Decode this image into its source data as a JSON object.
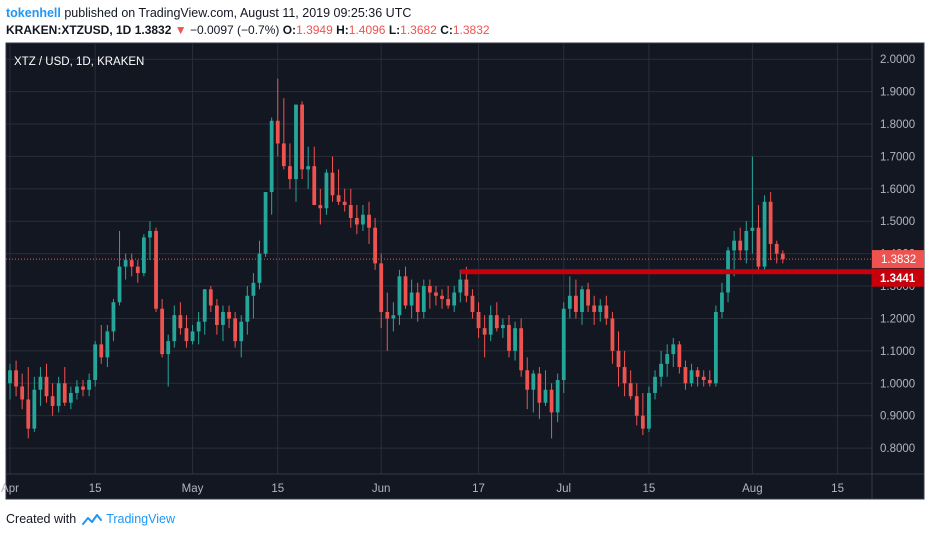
{
  "header": {
    "user": "tokenhell",
    "published_text": "published on TradingView.com, August 11, 2019 09:25:36 UTC",
    "symbol": "KRAKEN:XTZUSD, 1D",
    "last": "1.3832",
    "change_arrow": "▼",
    "change": "−0.0097 (−0.7%)",
    "o_label": "O:",
    "o_value": "1.3949",
    "h_label": "H:",
    "h_value": "1.4096",
    "l_label": "L:",
    "l_value": "1.3682",
    "c_label": "C:",
    "c_value": "1.3832"
  },
  "footer": {
    "created_with": "Created with",
    "brand": "TradingView",
    "logo_icon": "tradingview-cloud-icon"
  },
  "colors": {
    "background": "#131722",
    "grid": "#2a2e39",
    "up": "#26a69a",
    "down": "#ef5350",
    "support_line": "#c8000c",
    "text": "#ffffff"
  },
  "chart_data": {
    "type": "candlestick",
    "title": "XTZ / USD, 1D, KRAKEN",
    "ylim": [
      0.72,
      2.05
    ],
    "y_ticks": [
      "0.8000",
      "0.9000",
      "1.0000",
      "1.1000",
      "1.2000",
      "1.3000",
      "1.4000",
      "1.5000",
      "1.6000",
      "1.7000",
      "1.8000",
      "1.9000",
      "2.0000"
    ],
    "x_ticks": [
      {
        "label": "Apr",
        "day": 0
      },
      {
        "label": "15",
        "day": 14
      },
      {
        "label": "May",
        "day": 30
      },
      {
        "label": "15",
        "day": 44
      },
      {
        "label": "Jun",
        "day": 61
      },
      {
        "label": "17",
        "day": 77
      },
      {
        "label": "Jul",
        "day": 91
      },
      {
        "label": "15",
        "day": 105
      },
      {
        "label": "Aug",
        "day": 122
      },
      {
        "label": "15",
        "day": 136
      }
    ],
    "x_range": [
      0,
      141
    ],
    "last_price_label": "1.3832",
    "support_level_label": "1.3441",
    "support_level": 1.3441,
    "support_start_day": 74,
    "ohlc": [
      [
        1.0,
        1.06,
        0.95,
        1.04
      ],
      [
        1.04,
        1.07,
        0.96,
        0.99
      ],
      [
        0.99,
        1.03,
        0.92,
        0.95
      ],
      [
        0.95,
        1.05,
        0.83,
        0.86
      ],
      [
        0.86,
        1.02,
        0.85,
        0.98
      ],
      [
        0.98,
        1.05,
        0.93,
        1.02
      ],
      [
        1.02,
        1.06,
        0.94,
        0.96
      ],
      [
        0.96,
        1.0,
        0.9,
        0.93
      ],
      [
        0.93,
        1.02,
        0.91,
        1.0
      ],
      [
        1.0,
        1.05,
        0.93,
        0.94
      ],
      [
        0.94,
        0.99,
        0.92,
        0.97
      ],
      [
        0.97,
        1.01,
        0.95,
        0.99
      ],
      [
        0.99,
        1.01,
        0.96,
        0.98
      ],
      [
        0.98,
        1.03,
        0.96,
        1.01
      ],
      [
        1.01,
        1.13,
        0.99,
        1.12
      ],
      [
        1.12,
        1.18,
        1.06,
        1.08
      ],
      [
        1.08,
        1.18,
        1.05,
        1.16
      ],
      [
        1.16,
        1.26,
        1.13,
        1.25
      ],
      [
        1.25,
        1.47,
        1.24,
        1.36
      ],
      [
        1.36,
        1.4,
        1.32,
        1.38
      ],
      [
        1.38,
        1.4,
        1.33,
        1.36
      ],
      [
        1.36,
        1.38,
        1.31,
        1.34
      ],
      [
        1.34,
        1.46,
        1.33,
        1.45
      ],
      [
        1.45,
        1.5,
        1.38,
        1.47
      ],
      [
        1.47,
        1.48,
        1.22,
        1.23
      ],
      [
        1.23,
        1.26,
        1.08,
        1.09
      ],
      [
        1.09,
        1.15,
        0.99,
        1.13
      ],
      [
        1.13,
        1.24,
        1.11,
        1.21
      ],
      [
        1.21,
        1.25,
        1.15,
        1.17
      ],
      [
        1.17,
        1.21,
        1.11,
        1.13
      ],
      [
        1.13,
        1.18,
        1.12,
        1.16
      ],
      [
        1.16,
        1.22,
        1.12,
        1.19
      ],
      [
        1.19,
        1.29,
        1.15,
        1.29
      ],
      [
        1.29,
        1.3,
        1.22,
        1.24
      ],
      [
        1.24,
        1.26,
        1.15,
        1.18
      ],
      [
        1.18,
        1.24,
        1.13,
        1.22
      ],
      [
        1.22,
        1.24,
        1.17,
        1.2
      ],
      [
        1.2,
        1.22,
        1.11,
        1.13
      ],
      [
        1.13,
        1.21,
        1.08,
        1.19
      ],
      [
        1.19,
        1.3,
        1.15,
        1.27
      ],
      [
        1.27,
        1.34,
        1.2,
        1.31
      ],
      [
        1.31,
        1.44,
        1.29,
        1.4
      ],
      [
        1.4,
        1.59,
        1.39,
        1.59
      ],
      [
        1.59,
        1.82,
        1.52,
        1.81
      ],
      [
        1.81,
        1.94,
        1.7,
        1.74
      ],
      [
        1.74,
        1.88,
        1.66,
        1.67
      ],
      [
        1.67,
        1.74,
        1.6,
        1.63
      ],
      [
        1.63,
        1.86,
        1.56,
        1.86
      ],
      [
        1.86,
        1.87,
        1.63,
        1.66
      ],
      [
        1.66,
        1.73,
        1.6,
        1.67
      ],
      [
        1.67,
        1.73,
        1.56,
        1.55
      ],
      [
        1.55,
        1.6,
        1.49,
        1.54
      ],
      [
        1.54,
        1.66,
        1.52,
        1.65
      ],
      [
        1.65,
        1.7,
        1.56,
        1.58
      ],
      [
        1.58,
        1.66,
        1.55,
        1.56
      ],
      [
        1.56,
        1.6,
        1.53,
        1.55
      ],
      [
        1.55,
        1.6,
        1.48,
        1.51
      ],
      [
        1.51,
        1.55,
        1.46,
        1.49
      ],
      [
        1.49,
        1.55,
        1.47,
        1.52
      ],
      [
        1.52,
        1.56,
        1.43,
        1.48
      ],
      [
        1.48,
        1.51,
        1.35,
        1.37
      ],
      [
        1.37,
        1.4,
        1.17,
        1.22
      ],
      [
        1.22,
        1.28,
        1.1,
        1.2
      ],
      [
        1.2,
        1.25,
        1.16,
        1.21
      ],
      [
        1.21,
        1.35,
        1.18,
        1.33
      ],
      [
        1.33,
        1.36,
        1.23,
        1.24
      ],
      [
        1.24,
        1.32,
        1.2,
        1.28
      ],
      [
        1.28,
        1.31,
        1.19,
        1.22
      ],
      [
        1.22,
        1.32,
        1.2,
        1.3
      ],
      [
        1.3,
        1.32,
        1.23,
        1.28
      ],
      [
        1.28,
        1.3,
        1.24,
        1.27
      ],
      [
        1.27,
        1.29,
        1.23,
        1.26
      ],
      [
        1.26,
        1.3,
        1.23,
        1.24
      ],
      [
        1.24,
        1.3,
        1.22,
        1.28
      ],
      [
        1.28,
        1.35,
        1.25,
        1.32
      ],
      [
        1.32,
        1.36,
        1.25,
        1.27
      ],
      [
        1.27,
        1.29,
        1.2,
        1.22
      ],
      [
        1.22,
        1.25,
        1.14,
        1.17
      ],
      [
        1.17,
        1.21,
        1.08,
        1.15
      ],
      [
        1.15,
        1.24,
        1.13,
        1.21
      ],
      [
        1.21,
        1.25,
        1.16,
        1.17
      ],
      [
        1.17,
        1.2,
        1.14,
        1.18
      ],
      [
        1.18,
        1.21,
        1.08,
        1.1
      ],
      [
        1.1,
        1.19,
        1.07,
        1.17
      ],
      [
        1.17,
        1.2,
        1.02,
        1.04
      ],
      [
        1.04,
        1.08,
        0.92,
        0.98
      ],
      [
        0.98,
        1.04,
        0.91,
        1.03
      ],
      [
        1.03,
        1.05,
        0.89,
        0.94
      ],
      [
        0.94,
        1.04,
        0.93,
        0.98
      ],
      [
        0.98,
        1.0,
        0.83,
        0.91
      ],
      [
        0.91,
        1.03,
        0.88,
        1.01
      ],
      [
        1.01,
        1.25,
        0.97,
        1.23
      ],
      [
        1.23,
        1.33,
        1.2,
        1.27
      ],
      [
        1.27,
        1.32,
        1.2,
        1.22
      ],
      [
        1.22,
        1.3,
        1.18,
        1.29
      ],
      [
        1.29,
        1.31,
        1.22,
        1.24
      ],
      [
        1.24,
        1.27,
        1.18,
        1.22
      ],
      [
        1.22,
        1.26,
        1.19,
        1.24
      ],
      [
        1.24,
        1.27,
        1.18,
        1.2
      ],
      [
        1.2,
        1.22,
        1.06,
        1.1
      ],
      [
        1.1,
        1.16,
        0.99,
        1.05
      ],
      [
        1.05,
        1.1,
        0.96,
        1.0
      ],
      [
        1.0,
        1.04,
        0.95,
        0.96
      ],
      [
        0.96,
        1.0,
        0.87,
        0.9
      ],
      [
        0.9,
        0.97,
        0.84,
        0.86
      ],
      [
        0.86,
        0.99,
        0.85,
        0.97
      ],
      [
        0.97,
        1.04,
        0.95,
        1.02
      ],
      [
        1.02,
        1.1,
        0.99,
        1.06
      ],
      [
        1.06,
        1.12,
        1.02,
        1.09
      ],
      [
        1.09,
        1.14,
        1.05,
        1.12
      ],
      [
        1.12,
        1.13,
        1.03,
        1.05
      ],
      [
        1.05,
        1.07,
        0.98,
        1.0
      ],
      [
        1.0,
        1.06,
        0.99,
        1.04
      ],
      [
        1.04,
        1.05,
        0.99,
        1.02
      ],
      [
        1.02,
        1.04,
        0.99,
        1.01
      ],
      [
        1.01,
        1.04,
        0.99,
        1.0
      ],
      [
        1.0,
        1.24,
        0.99,
        1.22
      ],
      [
        1.22,
        1.31,
        1.2,
        1.28
      ],
      [
        1.28,
        1.42,
        1.25,
        1.41
      ],
      [
        1.41,
        1.47,
        1.33,
        1.44
      ],
      [
        1.44,
        1.48,
        1.38,
        1.41
      ],
      [
        1.41,
        1.5,
        1.37,
        1.47
      ],
      [
        1.47,
        1.7,
        1.4,
        1.48
      ],
      [
        1.48,
        1.55,
        1.35,
        1.36
      ],
      [
        1.36,
        1.58,
        1.35,
        1.56
      ],
      [
        1.56,
        1.59,
        1.38,
        1.43
      ],
      [
        1.43,
        1.44,
        1.37,
        1.4
      ],
      [
        1.4,
        1.41,
        1.37,
        1.3832
      ]
    ]
  }
}
